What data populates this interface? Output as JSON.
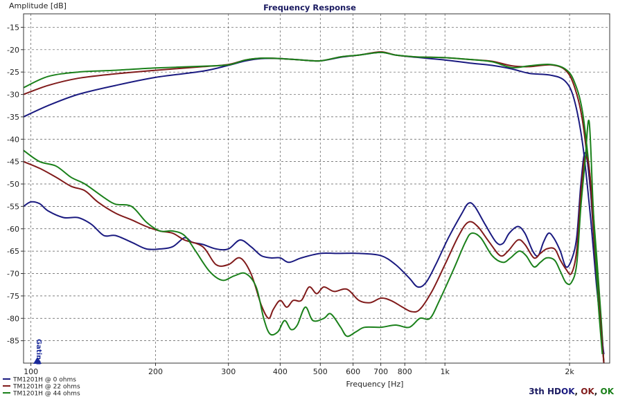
{
  "chart_data": {
    "type": "line",
    "title": "Frequency Response",
    "xlabel": "Frequency [Hz]",
    "ylabel": "Amplitude [dB]",
    "xscale": "log",
    "xlim": [
      96,
      2500
    ],
    "ylim": [
      -90,
      -12
    ],
    "grid": true,
    "x_tick_labels": [
      {
        "value": 100,
        "label": "100"
      },
      {
        "value": 200,
        "label": "200"
      },
      {
        "value": 300,
        "label": "300"
      },
      {
        "value": 400,
        "label": "400"
      },
      {
        "value": 500,
        "label": "500"
      },
      {
        "value": 600,
        "label": "600"
      },
      {
        "value": 700,
        "label": "700"
      },
      {
        "value": 800,
        "label": "800"
      },
      {
        "value": 1000,
        "label": "1k"
      },
      {
        "value": 2000,
        "label": "2k"
      }
    ],
    "x_minor_gridlines": [
      900
    ],
    "y_ticks": [
      -15,
      -20,
      -25,
      -30,
      -35,
      -40,
      -45,
      -50,
      -55,
      -60,
      -65,
      -70,
      -75,
      -80,
      -85
    ],
    "gating_label": "Gating",
    "legend_position": "bottom-left",
    "legend": [
      {
        "label": "TM1201H @ 0 ohms",
        "color": "#1a1a80"
      },
      {
        "label": "TM1201H @ 22 ohms",
        "color": "#801a1a"
      },
      {
        "label": "TM1201H @ 44 ohms",
        "color": "#1a801a"
      }
    ],
    "status": {
      "prefix": "3th HD",
      "items": [
        {
          "text": "OK",
          "color": "#1a1a80"
        },
        {
          "text": "OK",
          "color": "#801a1a"
        },
        {
          "text": "OK",
          "color": "#1a801a"
        }
      ]
    },
    "series": [
      {
        "name": "TM1201H @ 0 ohms",
        "group": "fundamental",
        "color": "#1a1a80",
        "points": [
          [
            96,
            -35
          ],
          [
            110,
            -32.5
          ],
          [
            130,
            -30
          ],
          [
            160,
            -28
          ],
          [
            200,
            -26.2
          ],
          [
            260,
            -24.8
          ],
          [
            300,
            -23.5
          ],
          [
            330,
            -22.5
          ],
          [
            360,
            -22.0
          ],
          [
            400,
            -22.0
          ],
          [
            450,
            -22.3
          ],
          [
            500,
            -22.5
          ],
          [
            560,
            -21.7
          ],
          [
            620,
            -21.2
          ],
          [
            700,
            -20.6
          ],
          [
            760,
            -21.2
          ],
          [
            850,
            -21.7
          ],
          [
            1000,
            -22.3
          ],
          [
            1150,
            -23
          ],
          [
            1300,
            -23.5
          ],
          [
            1450,
            -24.3
          ],
          [
            1600,
            -25.3
          ],
          [
            1800,
            -25.7
          ],
          [
            1950,
            -27
          ],
          [
            2050,
            -31
          ],
          [
            2150,
            -41
          ],
          [
            2250,
            -58
          ],
          [
            2320,
            -72
          ],
          [
            2380,
            -82
          ],
          [
            2420,
            -90
          ]
        ]
      },
      {
        "name": "TM1201H @ 22 ohms",
        "group": "fundamental",
        "color": "#801a1a",
        "points": [
          [
            96,
            -30
          ],
          [
            110,
            -28
          ],
          [
            130,
            -26.4
          ],
          [
            160,
            -25.4
          ],
          [
            200,
            -24.6
          ],
          [
            260,
            -23.8
          ],
          [
            300,
            -23.3
          ],
          [
            330,
            -22.3
          ],
          [
            360,
            -21.9
          ],
          [
            400,
            -22.0
          ],
          [
            450,
            -22.3
          ],
          [
            500,
            -22.5
          ],
          [
            560,
            -21.6
          ],
          [
            620,
            -21.2
          ],
          [
            700,
            -20.5
          ],
          [
            760,
            -21.2
          ],
          [
            850,
            -21.6
          ],
          [
            1000,
            -21.8
          ],
          [
            1150,
            -22.2
          ],
          [
            1300,
            -22.6
          ],
          [
            1450,
            -23.6
          ],
          [
            1600,
            -23.8
          ],
          [
            1800,
            -23.4
          ],
          [
            1950,
            -24.5
          ],
          [
            2050,
            -28
          ],
          [
            2150,
            -36
          ],
          [
            2250,
            -52
          ],
          [
            2320,
            -67
          ],
          [
            2380,
            -80
          ],
          [
            2420,
            -90
          ]
        ]
      },
      {
        "name": "TM1201H @ 44 ohms",
        "group": "fundamental",
        "color": "#1a801a",
        "points": [
          [
            96,
            -28.5
          ],
          [
            110,
            -26
          ],
          [
            130,
            -25
          ],
          [
            160,
            -24.6
          ],
          [
            200,
            -24.1
          ],
          [
            260,
            -23.7
          ],
          [
            300,
            -23.4
          ],
          [
            330,
            -22.3
          ],
          [
            360,
            -21.9
          ],
          [
            400,
            -22.0
          ],
          [
            450,
            -22.3
          ],
          [
            500,
            -22.5
          ],
          [
            560,
            -21.6
          ],
          [
            620,
            -21.2
          ],
          [
            700,
            -20.6
          ],
          [
            760,
            -21.2
          ],
          [
            850,
            -21.6
          ],
          [
            1000,
            -21.8
          ],
          [
            1150,
            -22.2
          ],
          [
            1300,
            -22.7
          ],
          [
            1450,
            -24.0
          ],
          [
            1600,
            -23.6
          ],
          [
            1800,
            -23.3
          ],
          [
            1950,
            -24.3
          ],
          [
            2050,
            -27
          ],
          [
            2150,
            -34
          ],
          [
            2250,
            -50
          ],
          [
            2320,
            -65
          ],
          [
            2380,
            -79
          ],
          [
            2420,
            -90
          ]
        ]
      },
      {
        "name": "TM1201H @ 0 ohms",
        "group": "harmonic",
        "color": "#1a1a80",
        "points": [
          [
            96,
            -55
          ],
          [
            100,
            -54
          ],
          [
            105,
            -54.4
          ],
          [
            110,
            -56
          ],
          [
            120,
            -57.5
          ],
          [
            130,
            -57.5
          ],
          [
            140,
            -59
          ],
          [
            150,
            -61.5
          ],
          [
            160,
            -61.5
          ],
          [
            175,
            -63
          ],
          [
            190,
            -64.5
          ],
          [
            205,
            -64.5
          ],
          [
            220,
            -64
          ],
          [
            235,
            -62
          ],
          [
            245,
            -63
          ],
          [
            260,
            -63.5
          ],
          [
            280,
            -64.5
          ],
          [
            300,
            -64.5
          ],
          [
            320,
            -62.5
          ],
          [
            340,
            -64
          ],
          [
            360,
            -66
          ],
          [
            380,
            -66.5
          ],
          [
            400,
            -66.5
          ],
          [
            420,
            -67.5
          ],
          [
            450,
            -66.5
          ],
          [
            500,
            -65.5
          ],
          [
            550,
            -65.5
          ],
          [
            620,
            -65.5
          ],
          [
            700,
            -66
          ],
          [
            760,
            -68
          ],
          [
            820,
            -71
          ],
          [
            860,
            -73
          ],
          [
            900,
            -72
          ],
          [
            950,
            -68
          ],
          [
            1020,
            -62
          ],
          [
            1100,
            -56.5
          ],
          [
            1140,
            -54.3
          ],
          [
            1180,
            -55
          ],
          [
            1250,
            -59
          ],
          [
            1330,
            -63
          ],
          [
            1380,
            -63.3
          ],
          [
            1430,
            -61
          ],
          [
            1500,
            -59.5
          ],
          [
            1560,
            -61
          ],
          [
            1630,
            -65
          ],
          [
            1680,
            -66
          ],
          [
            1730,
            -63
          ],
          [
            1780,
            -61
          ],
          [
            1830,
            -62
          ],
          [
            1900,
            -65
          ],
          [
            1960,
            -68.5
          ],
          [
            2020,
            -67
          ],
          [
            2080,
            -62
          ],
          [
            2130,
            -50
          ],
          [
            2180,
            -43
          ],
          [
            2240,
            -50
          ],
          [
            2300,
            -65
          ],
          [
            2380,
            -82
          ],
          [
            2420,
            -88
          ]
        ]
      },
      {
        "name": "TM1201H @ 22 ohms",
        "group": "harmonic",
        "color": "#801a1a",
        "points": [
          [
            96,
            -45
          ],
          [
            105,
            -46.5
          ],
          [
            115,
            -48.5
          ],
          [
            125,
            -50.5
          ],
          [
            135,
            -51.5
          ],
          [
            145,
            -54
          ],
          [
            160,
            -56.5
          ],
          [
            175,
            -58
          ],
          [
            190,
            -59.5
          ],
          [
            205,
            -60.5
          ],
          [
            220,
            -61
          ],
          [
            235,
            -62.5
          ],
          [
            260,
            -64
          ],
          [
            280,
            -68
          ],
          [
            300,
            -68
          ],
          [
            320,
            -66.5
          ],
          [
            340,
            -70
          ],
          [
            360,
            -77
          ],
          [
            375,
            -80
          ],
          [
            385,
            -78
          ],
          [
            400,
            -76
          ],
          [
            415,
            -77.5
          ],
          [
            430,
            -76
          ],
          [
            450,
            -76
          ],
          [
            470,
            -73
          ],
          [
            490,
            -74.5
          ],
          [
            510,
            -73
          ],
          [
            540,
            -74
          ],
          [
            580,
            -73.5
          ],
          [
            620,
            -76
          ],
          [
            660,
            -76.5
          ],
          [
            700,
            -75.5
          ],
          [
            740,
            -76
          ],
          [
            790,
            -77.5
          ],
          [
            830,
            -78.5
          ],
          [
            870,
            -78
          ],
          [
            930,
            -74
          ],
          [
            1000,
            -68
          ],
          [
            1080,
            -61.5
          ],
          [
            1140,
            -58.5
          ],
          [
            1200,
            -59.5
          ],
          [
            1280,
            -63
          ],
          [
            1360,
            -66
          ],
          [
            1420,
            -65
          ],
          [
            1500,
            -62.5
          ],
          [
            1560,
            -63.5
          ],
          [
            1640,
            -66.5
          ],
          [
            1700,
            -65.5
          ],
          [
            1760,
            -64.5
          ],
          [
            1840,
            -64.5
          ],
          [
            1900,
            -67
          ],
          [
            1960,
            -69
          ],
          [
            2020,
            -70
          ],
          [
            2080,
            -65
          ],
          [
            2130,
            -52
          ],
          [
            2180,
            -44
          ],
          [
            2240,
            -48
          ],
          [
            2300,
            -65
          ],
          [
            2380,
            -82
          ],
          [
            2420,
            -90
          ]
        ]
      },
      {
        "name": "TM1201H @ 44 ohms",
        "group": "harmonic",
        "color": "#1a801a",
        "points": [
          [
            96,
            -42.5
          ],
          [
            105,
            -45
          ],
          [
            115,
            -46
          ],
          [
            125,
            -48.5
          ],
          [
            135,
            -50
          ],
          [
            150,
            -53
          ],
          [
            160,
            -54.5
          ],
          [
            175,
            -55
          ],
          [
            190,
            -58.5
          ],
          [
            205,
            -60.5
          ],
          [
            220,
            -60.5
          ],
          [
            235,
            -61.5
          ],
          [
            250,
            -65
          ],
          [
            270,
            -69.5
          ],
          [
            290,
            -71.5
          ],
          [
            310,
            -70.5
          ],
          [
            330,
            -70
          ],
          [
            350,
            -73
          ],
          [
            365,
            -80
          ],
          [
            378,
            -83.5
          ],
          [
            395,
            -83
          ],
          [
            410,
            -80.5
          ],
          [
            425,
            -82.5
          ],
          [
            440,
            -81.5
          ],
          [
            460,
            -77.5
          ],
          [
            480,
            -80.5
          ],
          [
            510,
            -80
          ],
          [
            530,
            -79
          ],
          [
            560,
            -82
          ],
          [
            580,
            -84
          ],
          [
            610,
            -83
          ],
          [
            640,
            -82
          ],
          [
            700,
            -82
          ],
          [
            760,
            -81.5
          ],
          [
            820,
            -82
          ],
          [
            870,
            -80
          ],
          [
            920,
            -80
          ],
          [
            970,
            -76
          ],
          [
            1050,
            -69
          ],
          [
            1120,
            -63
          ],
          [
            1160,
            -61
          ],
          [
            1220,
            -62
          ],
          [
            1300,
            -66
          ],
          [
            1380,
            -67.5
          ],
          [
            1440,
            -66.5
          ],
          [
            1510,
            -65
          ],
          [
            1570,
            -66
          ],
          [
            1640,
            -68.5
          ],
          [
            1700,
            -67.5
          ],
          [
            1760,
            -66.5
          ],
          [
            1840,
            -67
          ],
          [
            1900,
            -69.5
          ],
          [
            1960,
            -72
          ],
          [
            2020,
            -72
          ],
          [
            2080,
            -68
          ],
          [
            2130,
            -55
          ],
          [
            2180,
            -45
          ],
          [
            2230,
            -36
          ],
          [
            2280,
            -55
          ],
          [
            2340,
            -75
          ],
          [
            2400,
            -88
          ]
        ]
      }
    ]
  }
}
